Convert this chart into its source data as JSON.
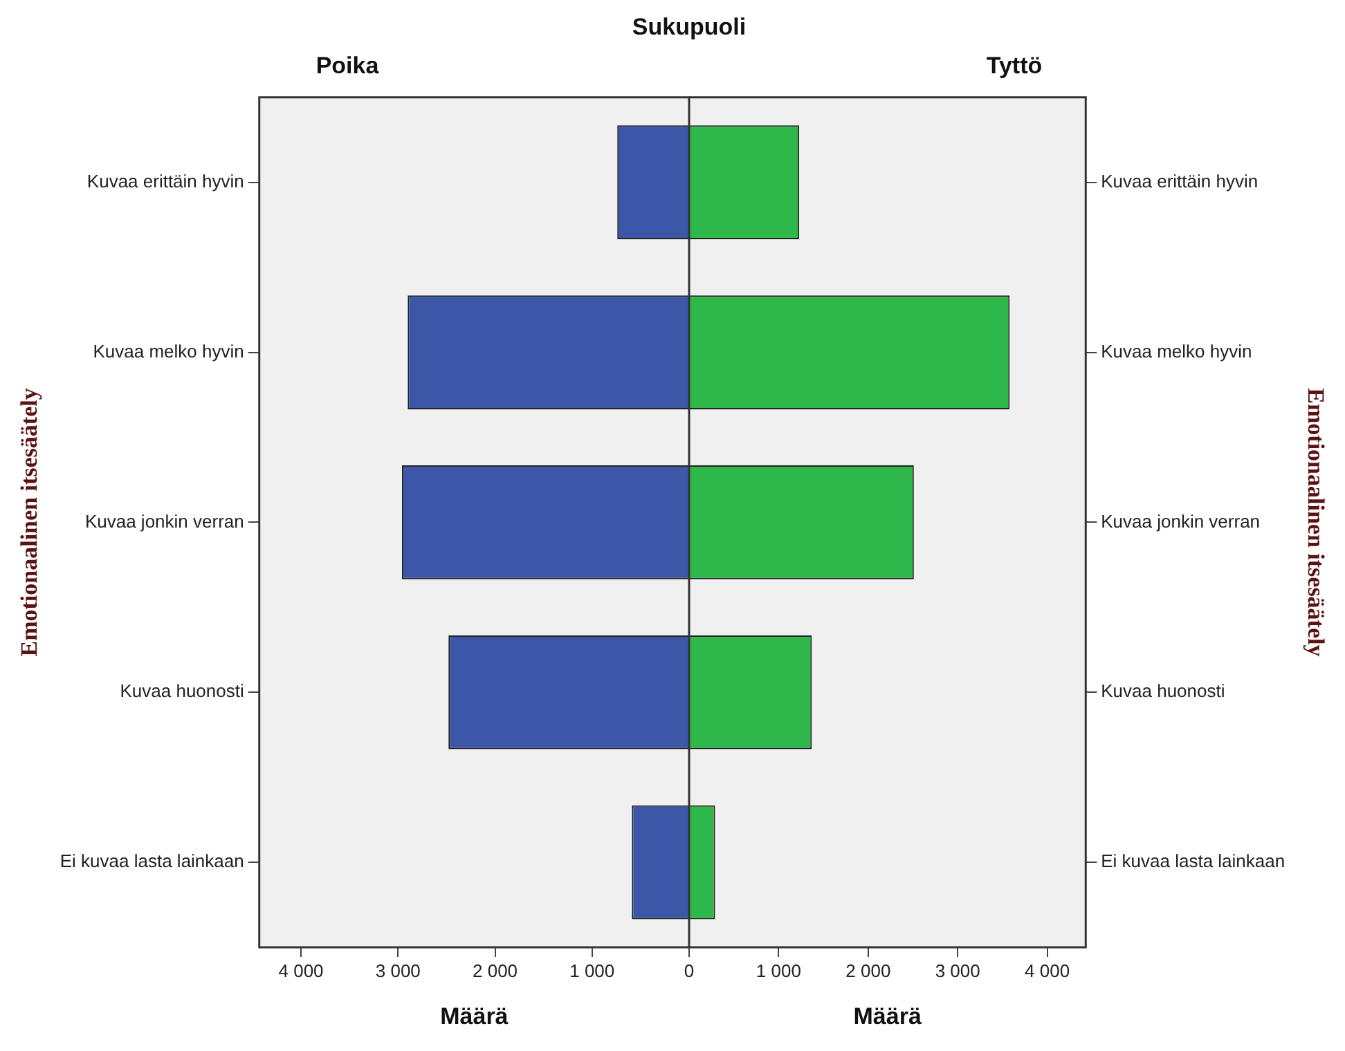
{
  "chart_data": [
    {
      "type": "bar",
      "orientation": "horizontal",
      "title": "Sukupuoli",
      "subtitle": "Poika",
      "categories": [
        "Kuvaa erittäin hyvin",
        "Kuvaa melko hyvin",
        "Kuvaa jonkin verran",
        "Kuvaa huonosti",
        "Ei kuvaa lasta lainkaan"
      ],
      "values": [
        740,
        2900,
        2960,
        2480,
        590
      ],
      "color": "#3c57a8",
      "xlim": [
        4430,
        0
      ],
      "xticks": [
        {
          "value": 4000,
          "label": "4 000"
        },
        {
          "value": 3000,
          "label": "3 000"
        },
        {
          "value": 2000,
          "label": "2 000"
        },
        {
          "value": 1000,
          "label": "1 000"
        },
        0
      ],
      "xlabel": "Määrä",
      "ylabel": "Emotionaalinen itsesäätely"
    },
    {
      "type": "bar",
      "orientation": "horizontal",
      "subtitle": "Tyttö",
      "categories": [
        "Kuvaa erittäin hyvin",
        "Kuvaa melko hyvin",
        "Kuvaa jonkin verran",
        "Kuvaa huonosti",
        "Ei kuvaa lasta lainkaan"
      ],
      "values": [
        1230,
        3580,
        2510,
        1370,
        290
      ],
      "color": "#2eb84a",
      "xlim": [
        0,
        4430
      ],
      "xticks": [
        {
          "value": 1000,
          "label": "1 000"
        },
        {
          "value": 2000,
          "label": "2 000"
        },
        {
          "value": 3000,
          "label": "3 000"
        },
        {
          "value": 4000,
          "label": "4 000"
        }
      ],
      "xlabel": "Määrä",
      "ylabel": "Emotionaalinen itsesäätely"
    }
  ]
}
